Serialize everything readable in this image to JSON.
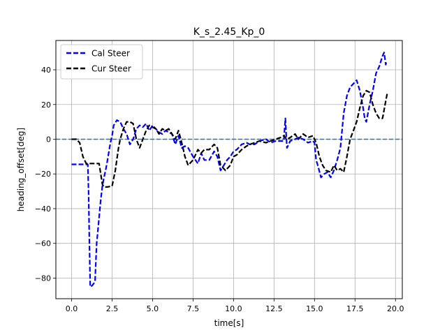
{
  "chart_data": {
    "type": "line",
    "title": "K_s_2.45_Kp_0",
    "xlabel": "time[s]",
    "ylabel": "heading_offset[deg]",
    "xlim": [
      -0.97,
      20.42
    ],
    "ylim": [
      -91.9,
      56.9
    ],
    "xticks": [
      0,
      2.5,
      5,
      7.5,
      10,
      12.5,
      15,
      17.5,
      20
    ],
    "xtick_labels": [
      "0.0",
      "2.5",
      "5.0",
      "7.5",
      "10.0",
      "12.5",
      "15.0",
      "17.5",
      "20.0"
    ],
    "yticks": [
      -80,
      -60,
      -40,
      -20,
      0,
      20,
      40
    ],
    "ytick_labels": [
      "−80",
      "−60",
      "−40",
      "−20",
      "0",
      "20",
      "40"
    ],
    "grid": true,
    "legend_position": "top-left",
    "reference_line": {
      "y": 0,
      "color": "#1f77b4",
      "style": "dashed"
    },
    "series": [
      {
        "name": "Cal Steer",
        "color": "#0000ff",
        "x": [
          0.0,
          0.5,
          1.0,
          1.05,
          1.1,
          1.15,
          1.2,
          1.3,
          1.45,
          1.5,
          1.55,
          1.6,
          1.7,
          1.8,
          1.9,
          2.0,
          2.1,
          2.2,
          2.4,
          2.5,
          2.6,
          2.8,
          3.0,
          3.2,
          3.4,
          3.6,
          3.8,
          4.0,
          4.2,
          4.4,
          4.6,
          4.8,
          5.0,
          5.2,
          5.4,
          5.6,
          5.8,
          6.0,
          6.2,
          6.4,
          6.6,
          6.8,
          7.0,
          7.2,
          7.5,
          7.8,
          8.0,
          8.2,
          8.5,
          8.8,
          9.0,
          9.2,
          9.4,
          9.6,
          9.8,
          10.0,
          10.2,
          10.5,
          10.8,
          11.0,
          11.3,
          11.6,
          12.0,
          12.3,
          12.6,
          12.9,
          13.1,
          13.2,
          13.25,
          13.3,
          13.5,
          13.8,
          14.0,
          14.3,
          14.6,
          14.9,
          15.0,
          15.1,
          15.2,
          15.4,
          15.6,
          15.8,
          16.0,
          16.2,
          16.4,
          16.6,
          16.8,
          17.0,
          17.2,
          17.4,
          17.6,
          17.8,
          18.0,
          18.1,
          18.2,
          18.4,
          18.6,
          18.8,
          19.0,
          19.2,
          19.3,
          19.4,
          19.45
        ],
        "y": [
          -14.5,
          -14.5,
          -14.5,
          -30,
          -60,
          -85,
          -85,
          -84,
          -82,
          -70,
          -60,
          -55,
          -45,
          -35,
          -27,
          -22,
          -18,
          -13,
          -2,
          2,
          8,
          11,
          10,
          6,
          3,
          -3,
          0,
          6,
          8,
          7,
          9,
          5,
          8,
          6,
          4,
          3,
          5,
          4,
          3,
          -3,
          2,
          -5,
          -4,
          -5,
          -10,
          -14,
          -8,
          -12,
          -12,
          -7,
          -10,
          -18,
          -15,
          -12,
          -10,
          -7,
          -6,
          -3,
          -2,
          -3,
          -3,
          -1,
          0,
          -2,
          -1,
          -1,
          -1,
          12,
          3,
          -5,
          -1,
          0,
          1,
          0,
          -2,
          -1,
          -2,
          -12,
          -15,
          -22,
          -20,
          -19,
          -22,
          -18,
          -12,
          -5,
          15,
          25,
          30,
          32,
          34,
          28,
          18,
          12,
          10,
          20,
          28,
          38,
          42,
          48,
          50,
          43,
          45
        ]
      },
      {
        "name": "Cur Steer",
        "color": "#000000",
        "x": [
          0.0,
          0.3,
          0.5,
          0.7,
          0.9,
          1.0,
          1.2,
          1.5,
          1.7,
          1.8,
          1.9,
          2.0,
          2.2,
          2.5,
          2.7,
          2.9,
          3.0,
          3.2,
          3.4,
          3.6,
          3.8,
          4.0,
          4.2,
          4.4,
          4.6,
          4.8,
          5.0,
          5.2,
          5.4,
          5.6,
          5.8,
          6.0,
          6.2,
          6.4,
          6.6,
          6.8,
          7.0,
          7.2,
          7.5,
          7.8,
          8.0,
          8.2,
          8.5,
          8.8,
          9.0,
          9.2,
          9.5,
          9.8,
          10.0,
          10.2,
          10.5,
          10.8,
          11.0,
          11.3,
          11.6,
          12.0,
          12.3,
          12.6,
          12.9,
          13.1,
          13.3,
          13.5,
          13.8,
          14.0,
          14.3,
          14.6,
          14.9,
          15.1,
          15.3,
          15.5,
          15.7,
          16.0,
          16.2,
          16.4,
          16.6,
          16.8,
          17.0,
          17.2,
          17.4,
          17.6,
          17.8,
          18.0,
          18.2,
          18.4,
          18.6,
          18.8,
          19.0,
          19.2,
          19.4,
          19.5
        ],
        "y": [
          0,
          0,
          -2,
          -10,
          -14,
          -14,
          -14,
          -14,
          -14,
          -20,
          -26,
          -27.5,
          -27.5,
          -27,
          -18,
          -5,
          0,
          6,
          10,
          10,
          9,
          0,
          -5,
          0,
          5,
          8,
          7,
          6,
          3,
          6,
          5,
          6,
          3,
          0,
          5,
          -2,
          -10,
          -15,
          -12,
          -6,
          -8,
          -6,
          -6,
          -3,
          -5,
          -15,
          -18,
          -15,
          -10,
          -9,
          -6,
          -4,
          -3,
          -2,
          -1,
          -2,
          -1,
          0,
          1,
          2,
          0,
          1,
          3,
          0,
          3,
          1,
          2,
          -2,
          -10,
          -15,
          -18,
          -19,
          -15,
          -18,
          -17,
          -19,
          -10,
          0,
          5,
          10,
          18,
          25,
          28,
          27,
          20,
          15,
          12,
          12,
          22,
          27
        ]
      }
    ]
  }
}
